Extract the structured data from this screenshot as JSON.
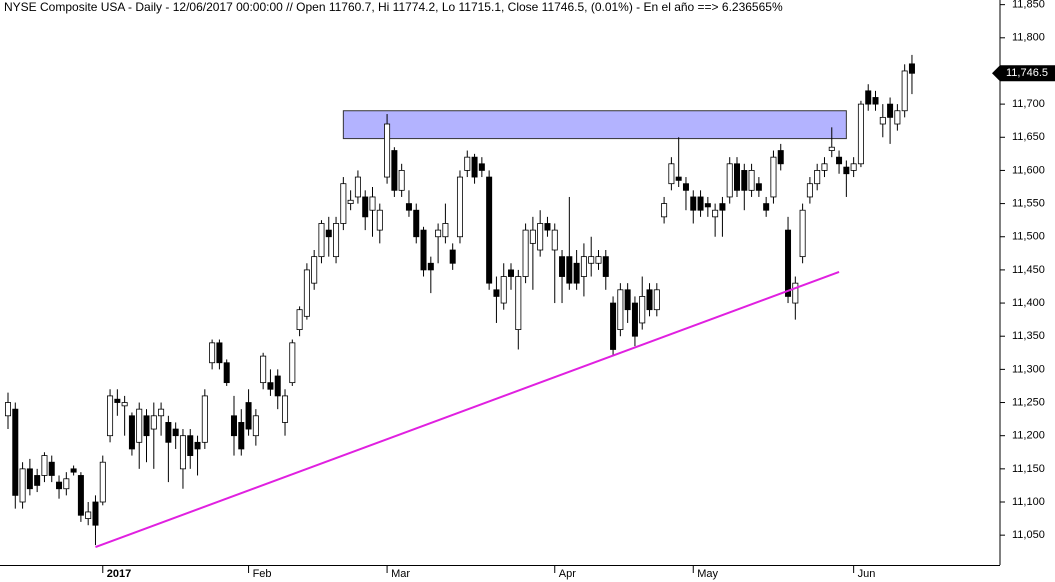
{
  "chart_data": {
    "type": "candlestick",
    "title": "NYSE Composite USA - Daily - 12/06/2017 00:00:00 // Open 11760.7, Hi 11774.2, Lo 11715.1, Close 11746.5, (0.01%) - En el año ==> 6.236565%",
    "categories": [
      null,
      null,
      null,
      null,
      null,
      null,
      null,
      null,
      null,
      null,
      null,
      null,
      null,
      "2017",
      null,
      null,
      null,
      null,
      null,
      null,
      null,
      null,
      null,
      null,
      null,
      null,
      null,
      null,
      null,
      null,
      null,
      null,
      null,
      "Feb",
      null,
      null,
      null,
      null,
      null,
      null,
      null,
      null,
      null,
      null,
      null,
      null,
      null,
      null,
      null,
      null,
      null,
      null,
      "Mar",
      null,
      null,
      null,
      null,
      null,
      null,
      null,
      null,
      null,
      null,
      null,
      null,
      null,
      null,
      null,
      null,
      null,
      null,
      null,
      null,
      null,
      null,
      "Apr",
      null,
      null,
      null,
      null,
      null,
      null,
      null,
      null,
      null,
      null,
      null,
      null,
      null,
      null,
      null,
      null,
      null,
      null,
      "May",
      null,
      null,
      null,
      null,
      null,
      null,
      null,
      null,
      null,
      null,
      null,
      null,
      null,
      null,
      null,
      null,
      null,
      null,
      null,
      null,
      null,
      "Jun",
      null,
      null,
      null,
      null,
      null,
      null,
      null,
      null
    ],
    "open": [
      11230,
      11240,
      11100,
      11150,
      11140,
      11140,
      11160,
      11130,
      11120,
      11150,
      11140,
      11075,
      11100,
      11100,
      11200,
      11255,
      11245,
      11230,
      11190,
      11230,
      11210,
      11230,
      11220,
      11210,
      11150,
      11200,
      11190,
      11190,
      11310,
      11340,
      11310,
      11230,
      11220,
      11250,
      11200,
      11280,
      11280,
      11290,
      11220,
      11280,
      11360,
      11380,
      11430,
      11470,
      11510,
      11470,
      11520,
      11550,
      11560,
      11560,
      11540,
      11510,
      11590,
      11630,
      11570,
      11550,
      11540,
      11510,
      11460,
      11500,
      11500,
      11480,
      11500,
      11600,
      11620,
      11610,
      11590,
      11420,
      11400,
      11450,
      11360,
      11440,
      11490,
      11480,
      11520,
      11480,
      11470,
      11470,
      11460,
      11440,
      11460,
      11460,
      11470,
      11400,
      11360,
      11420,
      11400,
      11370,
      11420,
      11390,
      11530,
      11580,
      11590,
      11580,
      11560,
      11560,
      11550,
      11530,
      11550,
      11560,
      11610,
      11600,
      11570,
      11580,
      11550,
      11560,
      11630,
      11510,
      11400,
      11470,
      11560,
      11580,
      11600,
      11630,
      11620,
      11605,
      11600,
      11610,
      11720,
      11710,
      11670,
      11700,
      11670,
      11690,
      11760.7
    ],
    "high": [
      11265,
      11250,
      11160,
      11165,
      11150,
      11175,
      11170,
      11140,
      11145,
      11155,
      11145,
      11100,
      11110,
      11170,
      11270,
      11270,
      11260,
      11235,
      11250,
      11240,
      11250,
      11250,
      11230,
      11220,
      11210,
      11210,
      11200,
      11270,
      11345,
      11345,
      11315,
      11260,
      11240,
      11270,
      11240,
      11325,
      11300,
      11300,
      11270,
      11345,
      11395,
      11460,
      11480,
      11525,
      11530,
      11530,
      11590,
      11570,
      11600,
      11570,
      11575,
      11550,
      11685,
      11635,
      11610,
      11570,
      11550,
      11515,
      11470,
      11520,
      11550,
      11490,
      11600,
      11630,
      11625,
      11620,
      11600,
      11440,
      11460,
      11460,
      11450,
      11520,
      11530,
      11540,
      11530,
      11520,
      11480,
      11560,
      11480,
      11490,
      11500,
      11480,
      11480,
      11410,
      11430,
      11430,
      11410,
      11440,
      11430,
      11430,
      11560,
      11620,
      11650,
      11590,
      11570,
      11570,
      11560,
      11550,
      11560,
      11620,
      11620,
      11610,
      11610,
      11590,
      11560,
      11630,
      11640,
      11530,
      11440,
      11550,
      11590,
      11610,
      11620,
      11665,
      11630,
      11615,
      11620,
      11705,
      11730,
      11720,
      11700,
      11710,
      11700,
      11760,
      11774.2
    ],
    "low": [
      11210,
      11090,
      11090,
      11110,
      11115,
      11130,
      11130,
      11105,
      11110,
      11140,
      11070,
      11065,
      11035,
      11095,
      11190,
      11230,
      11200,
      11170,
      11150,
      11160,
      11150,
      11200,
      11130,
      11180,
      11120,
      11150,
      11140,
      11180,
      11300,
      11300,
      11275,
      11170,
      11170,
      11200,
      11185,
      11270,
      11260,
      11240,
      11200,
      11275,
      11350,
      11375,
      11420,
      11460,
      11470,
      11460,
      11510,
      11540,
      11550,
      11510,
      11500,
      11490,
      11580,
      11560,
      11560,
      11530,
      11490,
      11440,
      11415,
      11460,
      11490,
      11450,
      11490,
      11590,
      11580,
      11590,
      11420,
      11370,
      11390,
      11420,
      11330,
      11430,
      11420,
      11470,
      11500,
      11400,
      11400,
      11420,
      11420,
      11410,
      11440,
      11450,
      11420,
      11320,
      11350,
      11370,
      11335,
      11360,
      11380,
      11380,
      11520,
      11570,
      11575,
      11540,
      11520,
      11530,
      11530,
      11500,
      11500,
      11550,
      11560,
      11540,
      11560,
      11560,
      11530,
      11550,
      11600,
      11400,
      11375,
      11460,
      11550,
      11570,
      11590,
      11620,
      11595,
      11560,
      11590,
      11605,
      11690,
      11690,
      11650,
      11640,
      11660,
      11680,
      11715.1
    ],
    "close": [
      11250,
      11110,
      11150,
      11120,
      11125,
      11170,
      11140,
      11120,
      11135,
      11145,
      11080,
      11085,
      11065,
      11160,
      11260,
      11250,
      11250,
      11180,
      11240,
      11200,
      11230,
      11240,
      11190,
      11200,
      11200,
      11170,
      11180,
      11260,
      11340,
      11310,
      11280,
      11200,
      11180,
      11210,
      11230,
      11320,
      11270,
      11260,
      11260,
      11340,
      11390,
      11450,
      11470,
      11520,
      11500,
      11520,
      11580,
      11555,
      11590,
      11530,
      11560,
      11540,
      11670,
      11570,
      11600,
      11540,
      11500,
      11450,
      11450,
      11510,
      11520,
      11460,
      11590,
      11620,
      11590,
      11600,
      11430,
      11410,
      11440,
      11440,
      11440,
      11510,
      11510,
      11520,
      11510,
      11510,
      11440,
      11430,
      11430,
      11470,
      11470,
      11470,
      11440,
      11330,
      11420,
      11390,
      11350,
      11410,
      11390,
      11420,
      11550,
      11610,
      11585,
      11570,
      11540,
      11540,
      11545,
      11540,
      11540,
      11610,
      11570,
      11570,
      11600,
      11570,
      11540,
      11620,
      11610,
      11410,
      11430,
      11540,
      11580,
      11600,
      11610,
      11635,
      11610,
      11595,
      11610,
      11700,
      11700,
      11700,
      11680,
      11680,
      11690,
      11750,
      11746.5
    ],
    "up_color": "#ffffff",
    "down_color": "#000000",
    "ylim": [
      11005,
      11857
    ],
    "yticks": [
      {
        "value": 11050,
        "label": "11,050"
      },
      {
        "value": 11100,
        "label": "11,100"
      },
      {
        "value": 11150,
        "label": "11,150"
      },
      {
        "value": 11200,
        "label": "11,200"
      },
      {
        "value": 11250,
        "label": "11,250"
      },
      {
        "value": 11300,
        "label": "11,300"
      },
      {
        "value": 11350,
        "label": "11,350"
      },
      {
        "value": 11400,
        "label": "11,400"
      },
      {
        "value": 11450,
        "label": "11,450"
      },
      {
        "value": 11500,
        "label": "11,500"
      },
      {
        "value": 11550,
        "label": "11,550"
      },
      {
        "value": 11600,
        "label": "11,600"
      },
      {
        "value": 11650,
        "label": "11,650"
      },
      {
        "value": 11700,
        "label": "11,700"
      },
      {
        "value": 11750,
        "label": "11,750"
      },
      {
        "value": 11800,
        "label": "11,800"
      },
      {
        "value": 11850,
        "label": "11,850"
      }
    ],
    "last_price": {
      "value": 11746.5,
      "label": "11,746.5"
    },
    "zone": {
      "x": [
        46,
        115
      ],
      "y": [
        11648,
        11690
      ],
      "color": "#b3b3ff"
    },
    "trendline": {
      "x": [
        12,
        114
      ],
      "y": [
        11032,
        11447
      ],
      "color": "#e020e0"
    }
  }
}
